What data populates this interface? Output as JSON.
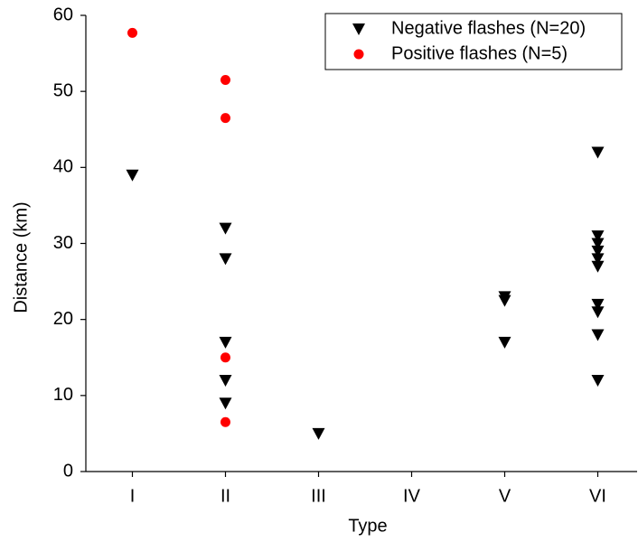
{
  "chart_data": {
    "type": "scatter",
    "x_label": "Type",
    "y_label": "Distance (km)",
    "categories": [
      "I",
      "II",
      "III",
      "IV",
      "V",
      "VI"
    ],
    "ylim": [
      0,
      60
    ],
    "yticks": [
      0,
      10,
      20,
      30,
      40,
      50,
      60
    ],
    "legend": "upper right",
    "series": [
      {
        "name": "Negative flashes (N=20)",
        "color": "#000000",
        "marker": "triangle-down",
        "x": [
          "I",
          "II",
          "II",
          "II",
          "II",
          "II",
          "III",
          "V",
          "V",
          "V",
          "VI",
          "VI",
          "VI",
          "VI",
          "VI",
          "VI",
          "VI",
          "VI",
          "VI",
          "VI"
        ],
        "values": [
          39,
          32,
          28,
          17,
          12,
          9,
          5,
          23,
          22.5,
          17,
          42,
          31,
          30,
          29,
          28,
          27,
          22,
          21,
          18,
          12
        ]
      },
      {
        "name": "Positive flashes (N=5)",
        "color": "#ff0000",
        "marker": "circle",
        "x": [
          "I",
          "II",
          "II",
          "II",
          "II"
        ],
        "values": [
          57.7,
          51.5,
          46.5,
          15,
          6.5
        ]
      }
    ]
  }
}
